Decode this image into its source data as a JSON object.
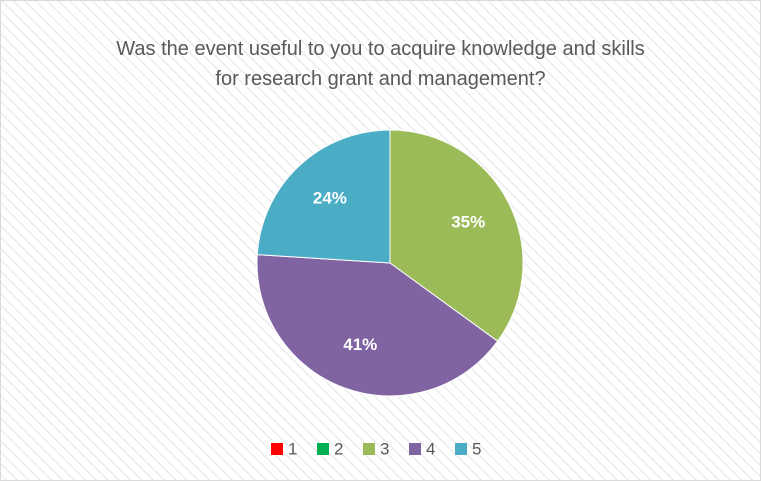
{
  "chart_data": {
    "type": "pie",
    "title": "Was the event useful to you to acquire knowledge and skills for research grant and management?",
    "categories": [
      "1",
      "2",
      "3",
      "4",
      "5"
    ],
    "values": [
      0,
      0,
      35,
      41,
      24
    ],
    "value_labels": [
      null,
      null,
      "35%",
      "41%",
      "24%"
    ],
    "colors": [
      "#ff0000",
      "#00b050",
      "#9bbb59",
      "#8064a2",
      "#4bacc6"
    ],
    "legend": "bottom"
  }
}
